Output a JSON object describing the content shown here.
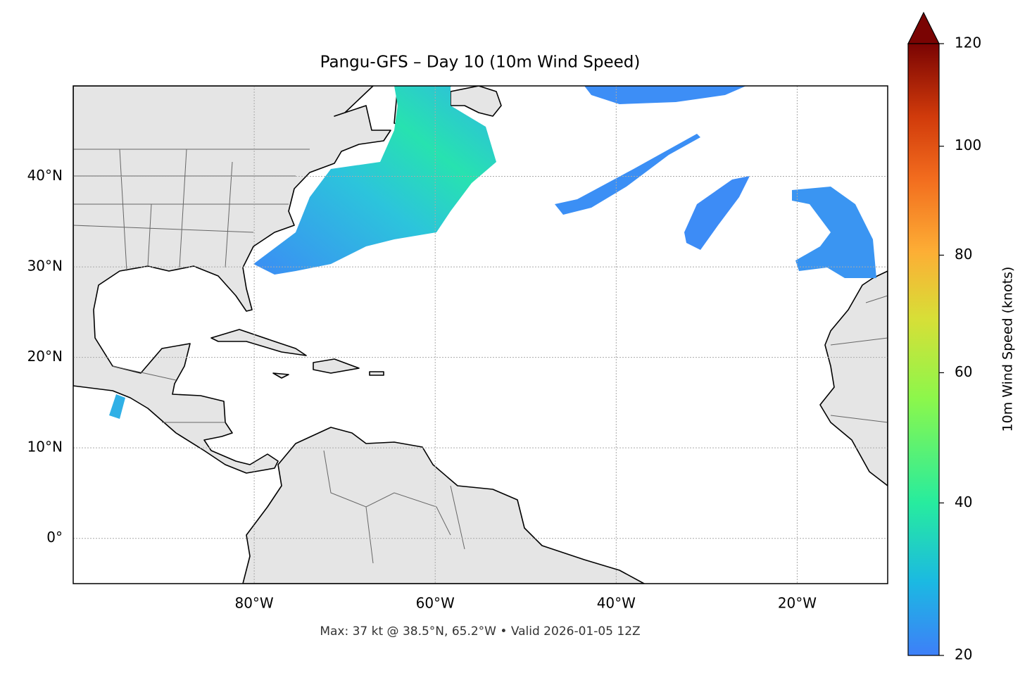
{
  "chart_data": {
    "type": "map",
    "title": "Pangu-GFS – Day 10 (10m Wind Speed)",
    "xlim": [
      -100,
      -10
    ],
    "ylim": [
      -5,
      50
    ],
    "xticks": [
      {
        "value": -80,
        "label": "80°W"
      },
      {
        "value": -60,
        "label": "60°W"
      },
      {
        "value": -40,
        "label": "40°W"
      },
      {
        "value": -20,
        "label": "20°W"
      }
    ],
    "yticks": [
      {
        "value": 0,
        "label": "0°"
      },
      {
        "value": 10,
        "label": "10°N"
      },
      {
        "value": 20,
        "label": "20°N"
      },
      {
        "value": 30,
        "label": "30°N"
      },
      {
        "value": 40,
        "label": "40°N"
      }
    ],
    "grid": true,
    "colorbar": {
      "label": "10m Wind Speed (knots)",
      "lim": [
        20,
        120
      ],
      "ticks": [
        20,
        40,
        60,
        80,
        100,
        120
      ]
    },
    "footnote": "Max: 37 kt @ 38.5°N, 65.2°W • Valid 2026-01-05 12Z"
  }
}
